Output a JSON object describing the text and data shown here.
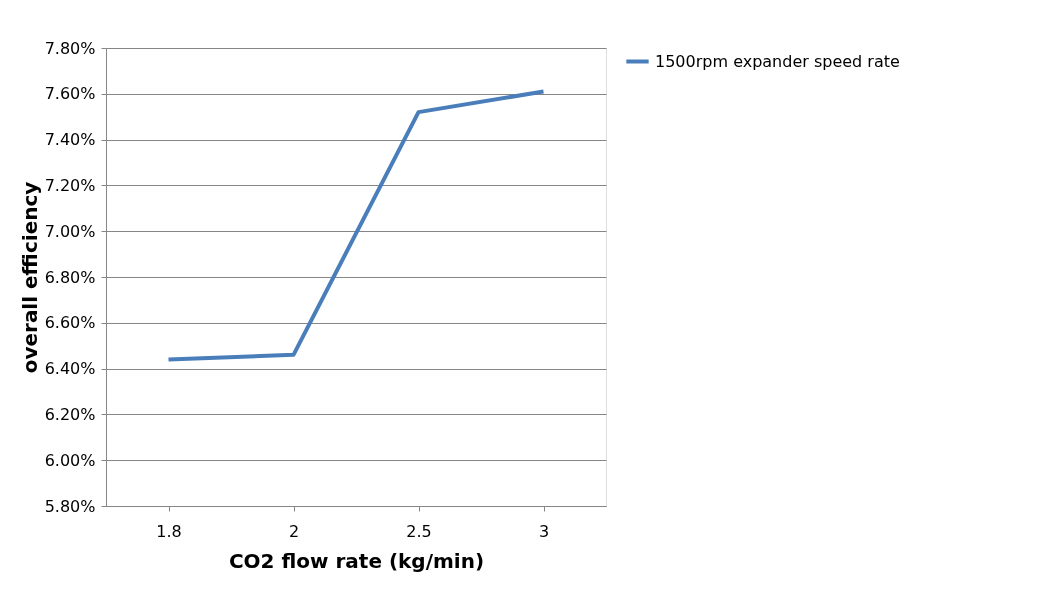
{
  "chart_data": {
    "type": "line",
    "xlabel": "CO2 flow rate (kg/min)",
    "ylabel": "overall efficiency",
    "categories": [
      "1.8",
      "2",
      "2.5",
      "3"
    ],
    "series": [
      {
        "name": "1500rpm expander speed rate",
        "color": "#4a7ebb",
        "values": [
          6.44,
          6.46,
          7.52,
          7.61
        ]
      }
    ],
    "ylim": [
      5.8,
      7.8
    ],
    "yticks": [
      {
        "value": 5.8,
        "label": "5.80%"
      },
      {
        "value": 6.0,
        "label": "6.00%"
      },
      {
        "value": 6.2,
        "label": "6.20%"
      },
      {
        "value": 6.4,
        "label": "6.40%"
      },
      {
        "value": 6.6,
        "label": "6.60%"
      },
      {
        "value": 6.8,
        "label": "6.80%"
      },
      {
        "value": 7.0,
        "label": "7.00%"
      },
      {
        "value": 7.2,
        "label": "7.20%"
      },
      {
        "value": 7.4,
        "label": "7.40%"
      },
      {
        "value": 7.6,
        "label": "7.60%"
      },
      {
        "value": 7.8,
        "label": "7.80%"
      }
    ],
    "grid": "y",
    "legend": "right",
    "marker": "none",
    "line_style": "solid"
  }
}
